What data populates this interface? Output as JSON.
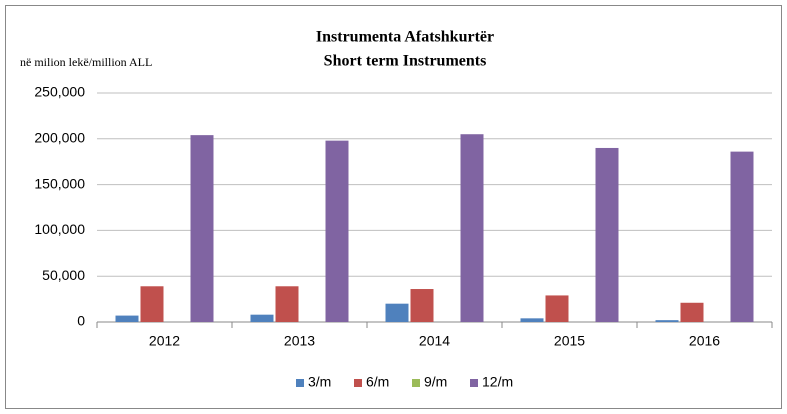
{
  "chart_data": {
    "type": "bar",
    "title": [
      "Instrumenta Afatshkurtër",
      "Short term Instruments"
    ],
    "y_label": "në milion lekë/million ALL",
    "categories": [
      "2012",
      "2013",
      "2014",
      "2015",
      "2016"
    ],
    "series": [
      {
        "name": "3/m",
        "color": "#4f81bd",
        "values": [
          7000,
          8000,
          20000,
          4000,
          2000
        ]
      },
      {
        "name": "6/m",
        "color": "#c0504d",
        "values": [
          39000,
          39000,
          36000,
          29000,
          21000
        ]
      },
      {
        "name": "9/m",
        "color": "#9bbb59",
        "values": [
          0,
          0,
          0,
          0,
          0
        ]
      },
      {
        "name": "12/m",
        "color": "#8064a2",
        "values": [
          204000,
          198000,
          205000,
          190000,
          186000
        ]
      }
    ],
    "ylim": [
      0,
      250000
    ],
    "yticks": [
      0,
      {
        "value": 50000,
        "label": "50,000"
      },
      {
        "value": 100000,
        "label": "100,000"
      },
      {
        "value": 150000,
        "label": "150,000"
      },
      {
        "value": 200000,
        "label": "200,000"
      },
      {
        "value": 250000,
        "label": "250,000"
      }
    ],
    "grid": true,
    "legend": "bottom"
  }
}
